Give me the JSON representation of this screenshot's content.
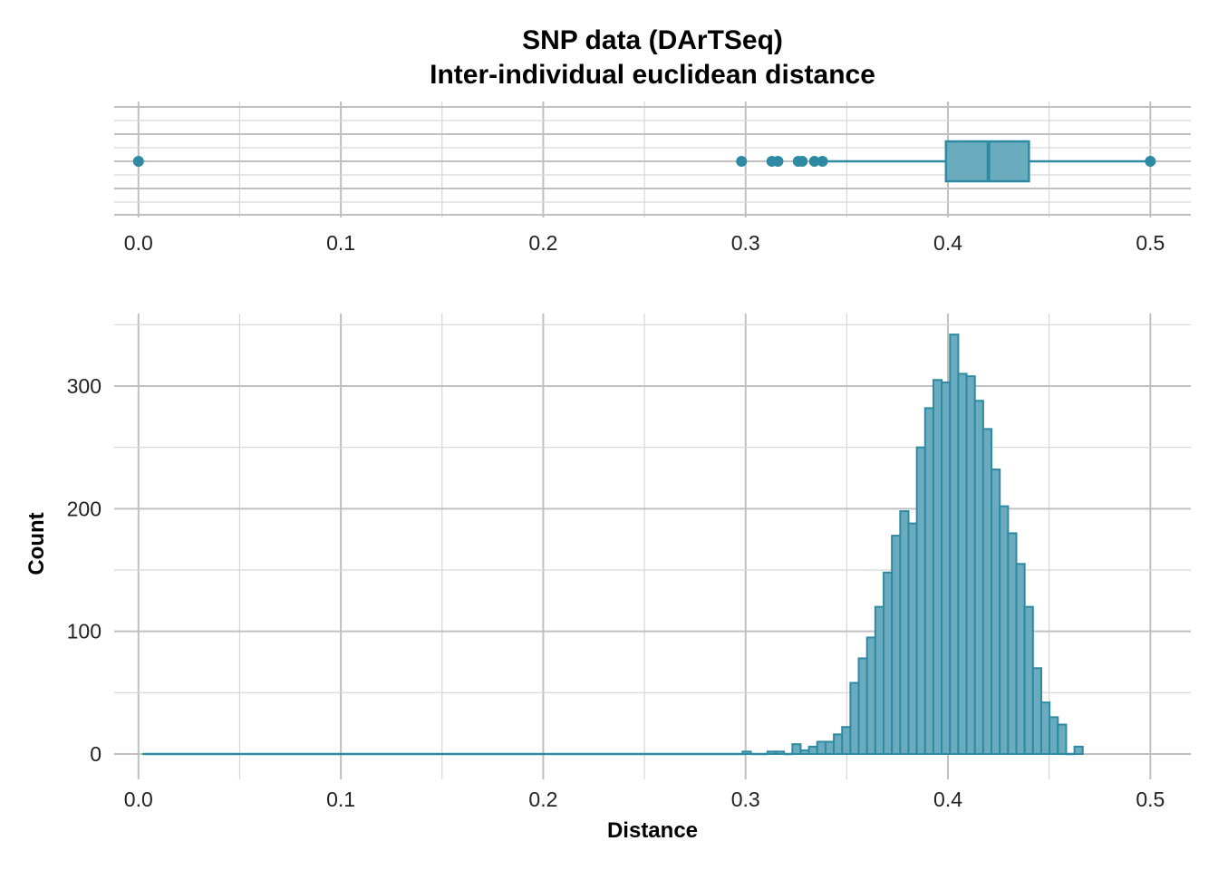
{
  "colors": {
    "fill": "#6aabbd",
    "stroke": "#2e8aa3",
    "grid_major": "#c0c0c0",
    "grid_minor": "#d6d6d6"
  },
  "chart_data": [
    {
      "type": "boxplot",
      "title_line1": "SNP data (DArTSeq)",
      "title_line2": "Inter-individual euclidean distance",
      "xlim": [
        -0.012,
        0.52
      ],
      "x_ticks": [
        "0.0",
        "0.1",
        "0.2",
        "0.3",
        "0.4",
        "0.5"
      ],
      "grid": true,
      "whisker_low": 0.34,
      "q1": 0.399,
      "median": 0.42,
      "q3": 0.44,
      "whisker_high": 0.5,
      "outliers": [
        0.0,
        0.298,
        0.313,
        0.316,
        0.326,
        0.328,
        0.334,
        0.338
      ]
    },
    {
      "type": "bar",
      "subtype": "histogram",
      "xlabel": "Distance",
      "ylabel": "Count",
      "xlim": [
        -0.012,
        0.52
      ],
      "ylim": [
        -10,
        360
      ],
      "x_ticks": [
        "0.0",
        "0.1",
        "0.2",
        "0.3",
        "0.4",
        "0.5"
      ],
      "y_ticks": [
        "0",
        "100",
        "200",
        "300"
      ],
      "grid": true,
      "bin_width": 0.0041,
      "bins_start": 0.3,
      "flat_zero_range": [
        0.0,
        0.3
      ],
      "counts": [
        2,
        0,
        0,
        2,
        2,
        0,
        8,
        3,
        6,
        10,
        10,
        16,
        22,
        58,
        78,
        95,
        120,
        148,
        178,
        198,
        188,
        250,
        282,
        305,
        303,
        342,
        310,
        308,
        288,
        265,
        232,
        202,
        180,
        155,
        120,
        70,
        42,
        30,
        24,
        0,
        6
      ]
    }
  ]
}
